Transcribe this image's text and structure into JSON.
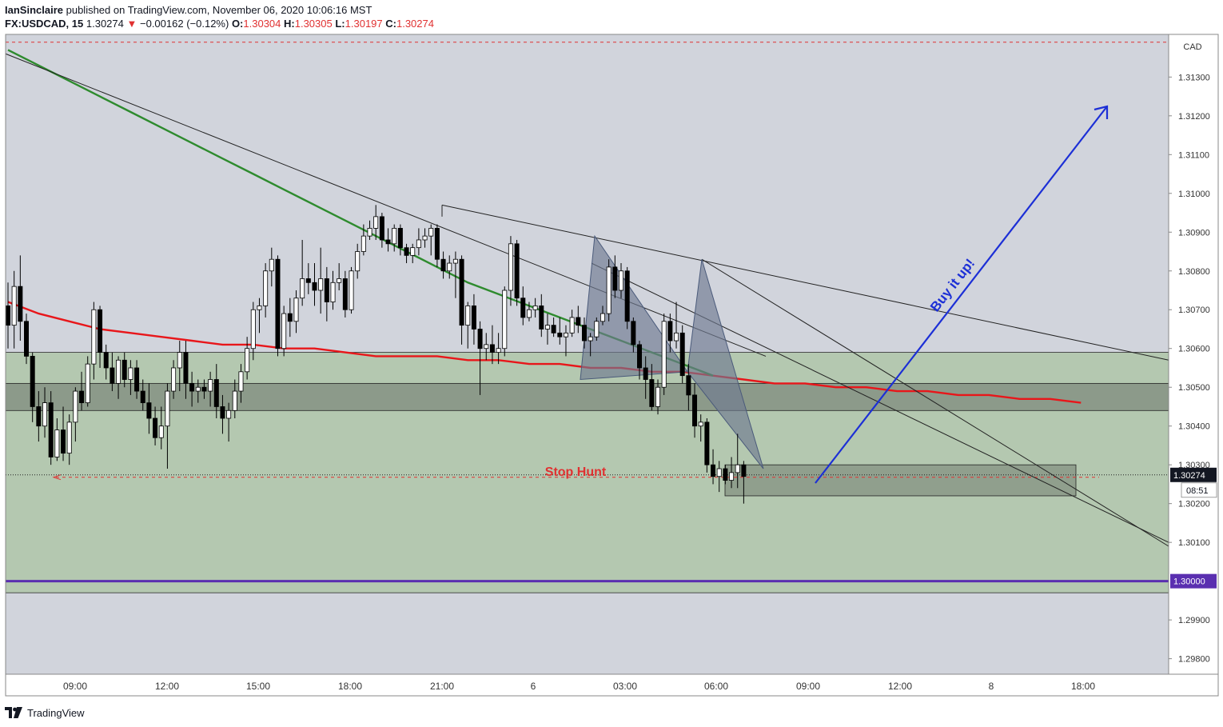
{
  "header": {
    "author": "IanSinclaire",
    "published_text": "published on TradingView.com, November 06, 2020 10:06:16 MST",
    "symbol": "FX:USDCAD, 15",
    "last": "1.30274",
    "change": "−0.00162 (−0.12%)",
    "o_label": "O:",
    "o_value": "1.30304",
    "h_label": "H:",
    "h_value": "1.30305",
    "l_label": "L:",
    "l_value": "1.30197",
    "c_label": "C:",
    "c_value": "1.30274"
  },
  "footer": {
    "brand": "TradingView"
  },
  "colors": {
    "background": "#d1d4dc",
    "zone_fill": "#b4c8b0",
    "ema_red": "#e8161a",
    "sma_green": "#2e8b2e",
    "arrow_blue": "#1c2fd6",
    "purple_line": "#5a2fb0",
    "bull": "#ffffff",
    "bear": "#000000"
  },
  "chart_data": {
    "type": "candlestick",
    "currency_label": "CAD",
    "y_ticks": [
      "1.31300",
      "1.31200",
      "1.31100",
      "1.31000",
      "1.30900",
      "1.30800",
      "1.30700",
      "1.30600",
      "1.30500",
      "1.30400",
      "1.30300",
      "1.30200",
      "1.30100",
      "1.29900",
      "1.29800"
    ],
    "x_ticks": [
      "09:00",
      "12:00",
      "15:00",
      "18:00",
      "21:00",
      "6",
      "03:00",
      "06:00",
      "09:00",
      "12:00",
      "8",
      "18:00"
    ],
    "ylim": [
      1.2976,
      1.3141
    ],
    "current_price_label": "1.30274",
    "countdown_label": "08:51",
    "level_label": "1.30000",
    "annotations": {
      "stop_hunt": "Stop Hunt",
      "buy": "Buy it up!"
    },
    "zones": [
      {
        "name": "support-zone",
        "from": 1.2997,
        "to": 1.3059
      },
      {
        "name": "inner-zone",
        "from": 1.3044,
        "to": 1.3051
      },
      {
        "name": "stop-hunt-box",
        "from": 1.3022,
        "to": 1.303
      }
    ],
    "candles": [
      [
        1.3071,
        1.3077,
        1.306,
        1.3066
      ],
      [
        1.3066,
        1.308,
        1.306,
        1.3076
      ],
      [
        1.3076,
        1.3084,
        1.3062,
        1.3067
      ],
      [
        1.3067,
        1.3069,
        1.3056,
        1.3058
      ],
      [
        1.3058,
        1.3059,
        1.3041,
        1.3045
      ],
      [
        1.3045,
        1.3049,
        1.3036,
        1.304
      ],
      [
        1.304,
        1.305,
        1.3037,
        1.3046
      ],
      [
        1.3046,
        1.3049,
        1.303,
        1.3032
      ],
      [
        1.3032,
        1.3042,
        1.3031,
        1.3039
      ],
      [
        1.3039,
        1.3045,
        1.3031,
        1.3033
      ],
      [
        1.3033,
        1.3043,
        1.303,
        1.3041
      ],
      [
        1.3041,
        1.305,
        1.3036,
        1.3049
      ],
      [
        1.3049,
        1.3054,
        1.3044,
        1.3046
      ],
      [
        1.3046,
        1.3058,
        1.3045,
        1.3056
      ],
      [
        1.3056,
        1.3072,
        1.3052,
        1.307
      ],
      [
        1.307,
        1.3071,
        1.3055,
        1.3059
      ],
      [
        1.3059,
        1.3061,
        1.3052,
        1.3055
      ],
      [
        1.3055,
        1.3059,
        1.3049,
        1.3051
      ],
      [
        1.3051,
        1.3058,
        1.3047,
        1.3057
      ],
      [
        1.3057,
        1.3059,
        1.305,
        1.3052
      ],
      [
        1.3052,
        1.3057,
        1.3048,
        1.3055
      ],
      [
        1.3055,
        1.3057,
        1.3047,
        1.3049
      ],
      [
        1.3049,
        1.3052,
        1.3044,
        1.3046
      ],
      [
        1.3046,
        1.3051,
        1.3038,
        1.3042
      ],
      [
        1.3042,
        1.3045,
        1.3035,
        1.3037
      ],
      [
        1.3037,
        1.3045,
        1.3034,
        1.304
      ],
      [
        1.304,
        1.3051,
        1.3029,
        1.3049
      ],
      [
        1.3049,
        1.3057,
        1.3047,
        1.3055
      ],
      [
        1.3055,
        1.3062,
        1.3049,
        1.3059
      ],
      [
        1.3059,
        1.3062,
        1.3047,
        1.3051
      ],
      [
        1.3051,
        1.3054,
        1.3045,
        1.3049
      ],
      [
        1.3049,
        1.3052,
        1.3046,
        1.305
      ],
      [
        1.305,
        1.3052,
        1.3047,
        1.3049
      ],
      [
        1.3049,
        1.3054,
        1.3045,
        1.3052
      ],
      [
        1.3052,
        1.3056,
        1.3042,
        1.3045
      ],
      [
        1.3045,
        1.3048,
        1.3038,
        1.3042
      ],
      [
        1.3042,
        1.3046,
        1.3036,
        1.3044
      ],
      [
        1.3044,
        1.3052,
        1.3042,
        1.3049
      ],
      [
        1.3049,
        1.3056,
        1.3046,
        1.3054
      ],
      [
        1.3054,
        1.3063,
        1.3052,
        1.306
      ],
      [
        1.306,
        1.3072,
        1.3057,
        1.307
      ],
      [
        1.307,
        1.3073,
        1.3064,
        1.3071
      ],
      [
        1.3071,
        1.3082,
        1.3068,
        1.308
      ],
      [
        1.308,
        1.3086,
        1.3076,
        1.3083
      ],
      [
        1.3083,
        1.3084,
        1.3058,
        1.306
      ],
      [
        1.306,
        1.3071,
        1.3058,
        1.3069
      ],
      [
        1.3069,
        1.3073,
        1.3063,
        1.3067
      ],
      [
        1.3067,
        1.3075,
        1.3064,
        1.3073
      ],
      [
        1.3073,
        1.3088,
        1.3071,
        1.3078
      ],
      [
        1.3078,
        1.3082,
        1.3074,
        1.3077
      ],
      [
        1.3077,
        1.3082,
        1.3071,
        1.3075
      ],
      [
        1.3075,
        1.3086,
        1.3069,
        1.3078
      ],
      [
        1.3078,
        1.3081,
        1.3067,
        1.3072
      ],
      [
        1.3072,
        1.308,
        1.307,
        1.3077
      ],
      [
        1.3077,
        1.3082,
        1.3075,
        1.3078
      ],
      [
        1.3078,
        1.308,
        1.3068,
        1.307
      ],
      [
        1.307,
        1.3081,
        1.3069,
        1.308
      ],
      [
        1.308,
        1.3087,
        1.3078,
        1.3085
      ],
      [
        1.3085,
        1.3092,
        1.3084,
        1.3089
      ],
      [
        1.3089,
        1.3093,
        1.3088,
        1.3091
      ],
      [
        1.3091,
        1.3097,
        1.3088,
        1.3094
      ],
      [
        1.3094,
        1.3095,
        1.3086,
        1.3088
      ],
      [
        1.3088,
        1.3091,
        1.3085,
        1.3087
      ],
      [
        1.3087,
        1.3092,
        1.3085,
        1.3091
      ],
      [
        1.3091,
        1.3092,
        1.3084,
        1.3086
      ],
      [
        1.3086,
        1.3087,
        1.3082,
        1.3084
      ],
      [
        1.3084,
        1.3087,
        1.3082,
        1.3086
      ],
      [
        1.3086,
        1.3091,
        1.3084,
        1.3088
      ],
      [
        1.3088,
        1.3091,
        1.3086,
        1.3089
      ],
      [
        1.3089,
        1.3092,
        1.3084,
        1.3091
      ],
      [
        1.3091,
        1.3092,
        1.3081,
        1.3083
      ],
      [
        1.3083,
        1.3085,
        1.3078,
        1.308
      ],
      [
        1.308,
        1.3084,
        1.3078,
        1.3082
      ],
      [
        1.3082,
        1.3085,
        1.3073,
        1.3083
      ],
      [
        1.3083,
        1.3084,
        1.3061,
        1.3066
      ],
      [
        1.3066,
        1.3072,
        1.306,
        1.3071
      ],
      [
        1.3071,
        1.3074,
        1.3061,
        1.3065
      ],
      [
        1.3065,
        1.3067,
        1.3048,
        1.306
      ],
      [
        1.306,
        1.3064,
        1.3057,
        1.3061
      ],
      [
        1.3061,
        1.3066,
        1.3056,
        1.3059
      ],
      [
        1.3059,
        1.3064,
        1.3056,
        1.306
      ],
      [
        1.306,
        1.3076,
        1.3058,
        1.3075
      ],
      [
        1.3075,
        1.3089,
        1.3071,
        1.3087
      ],
      [
        1.3087,
        1.3088,
        1.3071,
        1.3073
      ],
      [
        1.3073,
        1.3076,
        1.3066,
        1.3068
      ],
      [
        1.3068,
        1.3072,
        1.3067,
        1.307
      ],
      [
        1.307,
        1.3073,
        1.3068,
        1.3071
      ],
      [
        1.3071,
        1.3074,
        1.3063,
        1.3065
      ],
      [
        1.3065,
        1.3069,
        1.3061,
        1.3066
      ],
      [
        1.3066,
        1.3068,
        1.3063,
        1.3064
      ],
      [
        1.3064,
        1.3068,
        1.3061,
        1.3063
      ],
      [
        1.3063,
        1.3066,
        1.3058,
        1.3064
      ],
      [
        1.3064,
        1.307,
        1.3063,
        1.3068
      ],
      [
        1.3068,
        1.3071,
        1.3064,
        1.3066
      ],
      [
        1.3066,
        1.3068,
        1.306,
        1.3062
      ],
      [
        1.3062,
        1.3064,
        1.3058,
        1.3063
      ],
      [
        1.3063,
        1.3068,
        1.3062,
        1.3067
      ],
      [
        1.3067,
        1.3071,
        1.3066,
        1.3069
      ],
      [
        1.3069,
        1.3083,
        1.3067,
        1.3081
      ],
      [
        1.3081,
        1.3084,
        1.3073,
        1.3075
      ],
      [
        1.3075,
        1.3082,
        1.3073,
        1.308
      ],
      [
        1.308,
        1.3081,
        1.3065,
        1.3067
      ],
      [
        1.3067,
        1.3068,
        1.3059,
        1.3061
      ],
      [
        1.3061,
        1.3062,
        1.3052,
        1.3055
      ],
      [
        1.3055,
        1.3058,
        1.3047,
        1.3052
      ],
      [
        1.3052,
        1.3056,
        1.3044,
        1.3045
      ],
      [
        1.3045,
        1.3052,
        1.3043,
        1.305
      ],
      [
        1.305,
        1.3069,
        1.3048,
        1.3067
      ],
      [
        1.3067,
        1.3069,
        1.3059,
        1.3062
      ],
      [
        1.3062,
        1.3072,
        1.306,
        1.3064
      ],
      [
        1.3064,
        1.3066,
        1.3051,
        1.3053
      ],
      [
        1.3053,
        1.3056,
        1.3044,
        1.3048
      ],
      [
        1.3048,
        1.3051,
        1.3037,
        1.304
      ],
      [
        1.304,
        1.3043,
        1.3036,
        1.3041
      ],
      [
        1.3041,
        1.3042,
        1.3028,
        1.303
      ],
      [
        1.303,
        1.3034,
        1.3025,
        1.3027
      ],
      [
        1.3027,
        1.3031,
        1.3023,
        1.3029
      ],
      [
        1.3029,
        1.303,
        1.3025,
        1.3026
      ],
      [
        1.3026,
        1.3032,
        1.3024,
        1.3028
      ],
      [
        1.3028,
        1.3038,
        1.3024,
        1.303
      ],
      [
        1.303,
        1.3031,
        1.302,
        1.3027
      ]
    ],
    "ema_red": [
      [
        0,
        1.3072
      ],
      [
        5,
        1.3069
      ],
      [
        10,
        1.3067
      ],
      [
        15,
        1.3065
      ],
      [
        20,
        1.3064
      ],
      [
        25,
        1.3063
      ],
      [
        30,
        1.3062
      ],
      [
        35,
        1.3061
      ],
      [
        40,
        1.3061
      ],
      [
        45,
        1.306
      ],
      [
        50,
        1.306
      ],
      [
        55,
        1.3059
      ],
      [
        60,
        1.3058
      ],
      [
        65,
        1.3058
      ],
      [
        70,
        1.3058
      ],
      [
        75,
        1.3057
      ],
      [
        80,
        1.3057
      ],
      [
        85,
        1.3056
      ],
      [
        90,
        1.3056
      ],
      [
        95,
        1.3055
      ],
      [
        100,
        1.3055
      ],
      [
        105,
        1.3054
      ],
      [
        110,
        1.3054
      ],
      [
        115,
        1.3053
      ],
      [
        120,
        1.3052
      ],
      [
        125,
        1.3051
      ],
      [
        130,
        1.3051
      ],
      [
        135,
        1.305
      ],
      [
        140,
        1.305
      ],
      [
        145,
        1.3049
      ],
      [
        150,
        1.3049
      ],
      [
        155,
        1.3048
      ],
      [
        160,
        1.3048
      ],
      [
        165,
        1.3047
      ],
      [
        170,
        1.3047
      ],
      [
        175,
        1.3046
      ]
    ],
    "sma_green": [
      [
        0,
        1.3137
      ],
      [
        5,
        1.3133
      ],
      [
        10,
        1.3129
      ],
      [
        15,
        1.3125
      ],
      [
        20,
        1.3121
      ],
      [
        25,
        1.3117
      ],
      [
        30,
        1.3113
      ],
      [
        35,
        1.3109
      ],
      [
        40,
        1.3105
      ],
      [
        45,
        1.3101
      ],
      [
        50,
        1.3097
      ],
      [
        55,
        1.3093
      ],
      [
        60,
        1.3089
      ],
      [
        65,
        1.3085
      ],
      [
        70,
        1.3081
      ],
      [
        75,
        1.3077
      ],
      [
        80,
        1.3074
      ],
      [
        85,
        1.3071
      ],
      [
        90,
        1.3068
      ],
      [
        95,
        1.3065
      ],
      [
        100,
        1.3062
      ],
      [
        105,
        1.3059
      ],
      [
        110,
        1.3056
      ],
      [
        115,
        1.3053
      ]
    ]
  }
}
